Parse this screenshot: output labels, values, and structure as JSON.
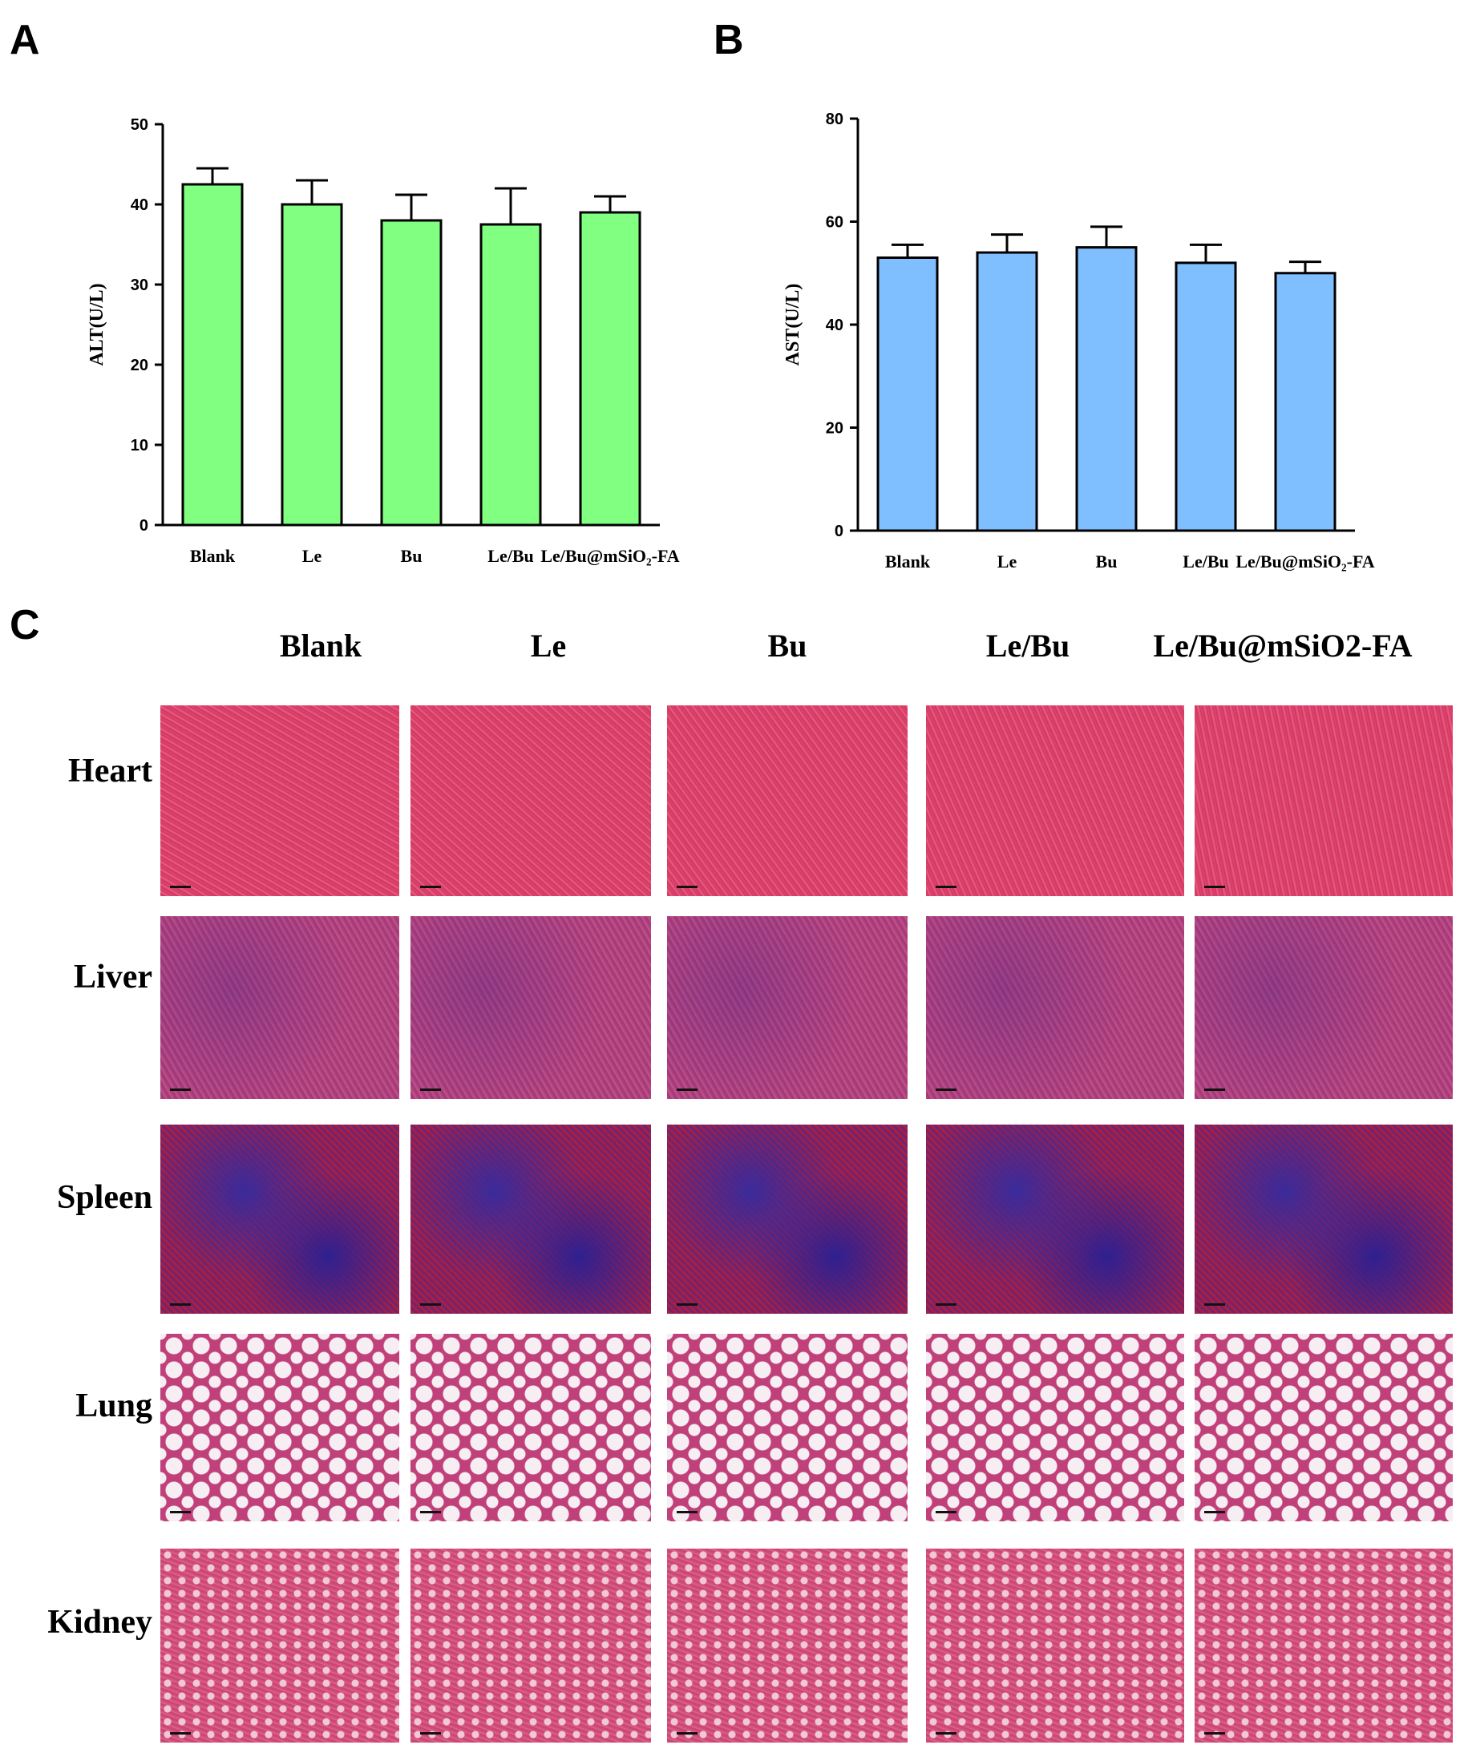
{
  "panels": {
    "a": "A",
    "b": "B",
    "c": "C"
  },
  "chart_data": [
    {
      "type": "bar",
      "categories": [
        "Blank",
        "Le",
        "Bu",
        "Le/Bu",
        "Le/Bu@mSiO₂-FA"
      ],
      "values": [
        42.5,
        40,
        38,
        37.5,
        39
      ],
      "errors": [
        2,
        3,
        3.2,
        4.5,
        2
      ],
      "ylabel": "ALT(U/L)",
      "ylim": [
        0,
        50
      ],
      "yticks": [
        0,
        10,
        20,
        30,
        40,
        50
      ],
      "color": "#80ff80",
      "grid": false
    },
    {
      "type": "bar",
      "categories": [
        "Blank",
        "Le",
        "Bu",
        "Le/Bu",
        "Le/Bu@mSiO₂-FA"
      ],
      "values": [
        53,
        54,
        55,
        52,
        50
      ],
      "errors": [
        2.5,
        3.5,
        4,
        3.5,
        2.2
      ],
      "ylabel": "AST(U/L)",
      "ylim": [
        0,
        80
      ],
      "yticks": [
        0,
        20,
        40,
        60,
        80
      ],
      "color": "#80bfff",
      "grid": false
    }
  ],
  "histology": {
    "columns": [
      "Blank",
      "Le",
      "Bu",
      "Le/Bu",
      "Le/Bu@mSiO2-FA"
    ],
    "rows": [
      "Heart",
      "Liver",
      "Spleen",
      "Lung",
      "Kidney"
    ],
    "stain_colors": {
      "Heart": "#d83a68",
      "Liver": "#b0407a",
      "Spleen": "#5a2a9a",
      "Lung": "#c43a78",
      "Kidney": "#d5527e"
    }
  }
}
